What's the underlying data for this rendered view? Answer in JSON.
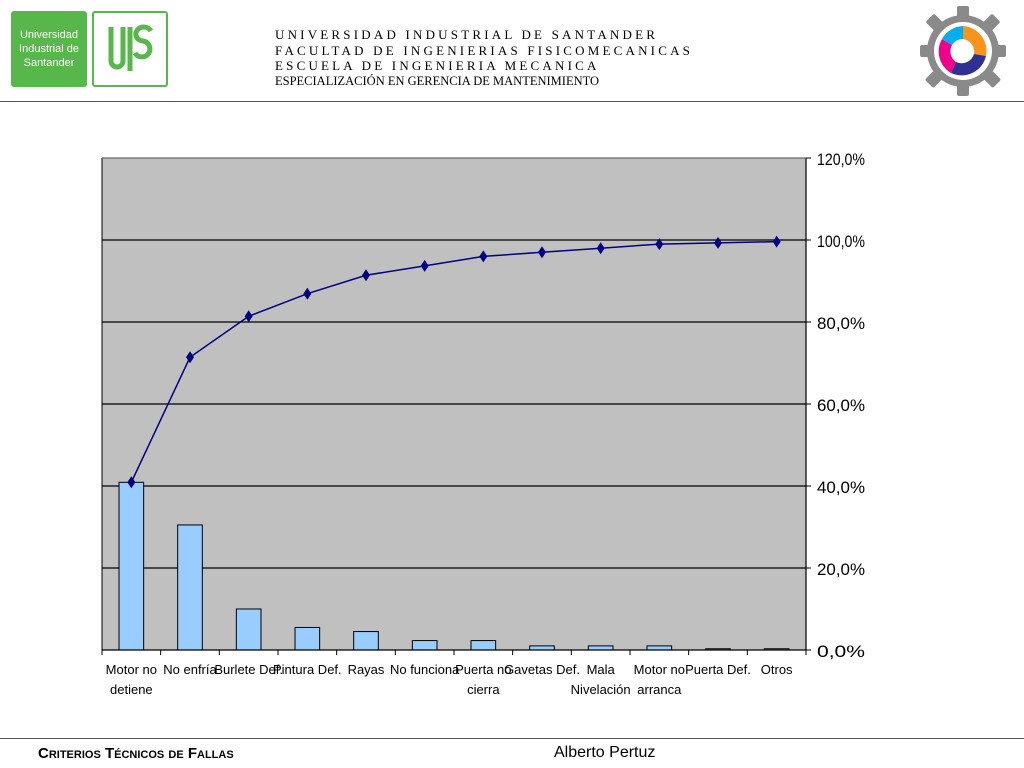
{
  "header": {
    "logo_text": [
      "Universidad",
      "Industrial de",
      "Santander"
    ],
    "lines": [
      "UNIVERSIDAD INDUSTRIAL DE SANTANDER",
      "FACULTAD DE INGENIERIAS FISICOMECANICAS",
      "ESCUELA DE INGENIERIA MECANICA",
      "ESPECIALIZACIÓN EN GERENCIA DE MANTENIMIENTO"
    ]
  },
  "footer": {
    "title": "Criterios Técnicos de Fallas",
    "author": "Alberto Pertuz"
  },
  "chart_data": {
    "type": "bar",
    "categories": [
      [
        "Motor no",
        "detiene"
      ],
      [
        "No enfría"
      ],
      [
        "Burlete Def."
      ],
      [
        "Pintura Def."
      ],
      [
        "Rayas"
      ],
      [
        "No funciona"
      ],
      [
        "Puerta no",
        "cierra"
      ],
      [
        "Gavetas Def."
      ],
      [
        "Mala",
        "Nivelación"
      ],
      [
        "Motor no",
        "arranca"
      ],
      [
        "Puerta Def."
      ],
      [
        "Otros"
      ]
    ],
    "series": [
      {
        "type": "bar",
        "values": [
          40.9,
          30.5,
          10.0,
          5.5,
          4.5,
          2.3,
          2.3,
          1.0,
          1.0,
          1.0,
          0.3,
          0.3
        ]
      },
      {
        "type": "line",
        "values": [
          40.9,
          71.4,
          81.4,
          86.9,
          91.4,
          93.7,
          96.0,
          97.0,
          98.0,
          99.0,
          99.3,
          99.6
        ]
      }
    ],
    "ylim": [
      0,
      120
    ],
    "yticks": [
      "0,0%",
      "20,0%",
      "40,0%",
      "60,0%",
      "80,0%",
      "100,0%",
      "120,0%"
    ],
    "ytick_values": [
      0,
      20,
      40,
      60,
      80,
      100,
      120
    ],
    "y_axis_side": "right",
    "grid": true,
    "colors": {
      "plot_bg": "#c0c0c0",
      "bar_fill": "#99ccff",
      "line": "#000080",
      "grid": "#000000"
    }
  }
}
